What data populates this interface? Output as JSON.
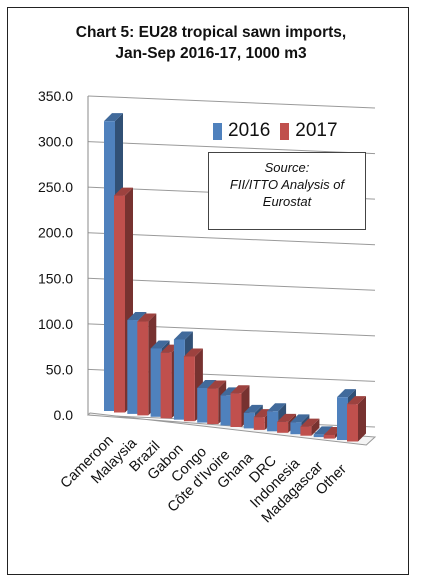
{
  "chart_data": {
    "type": "bar",
    "title": "Chart 5: EU28 tropical sawn imports,\nJan-Sep 2016-17, 1000 m3",
    "categories": [
      "Cameroon",
      "Malaysia",
      "Brazil",
      "Gabon",
      "Congo",
      "Côte d'Ivoire",
      "Ghana",
      "DRC",
      "Indonesia",
      "Madagascar",
      "Other"
    ],
    "series": [
      {
        "name": "2016",
        "color": "#4f81bd",
        "values": [
          318,
          103,
          75,
          88,
          38,
          33,
          17,
          22,
          13,
          3,
          47
        ]
      },
      {
        "name": "2017",
        "color": "#c0504d",
        "values": [
          238,
          103,
          72,
          71,
          39,
          37,
          14,
          12,
          10,
          4,
          41
        ]
      }
    ],
    "ylim": [
      0,
      350
    ],
    "yticks": [
      "0.0",
      "50.0",
      "100.0",
      "150.0",
      "200.0",
      "250.0",
      "300.0",
      "350.0"
    ],
    "grid": true,
    "legend": "top-right",
    "annotation": [
      "Source:",
      "FII/ITTO Analysis of",
      "Eurostat"
    ]
  }
}
